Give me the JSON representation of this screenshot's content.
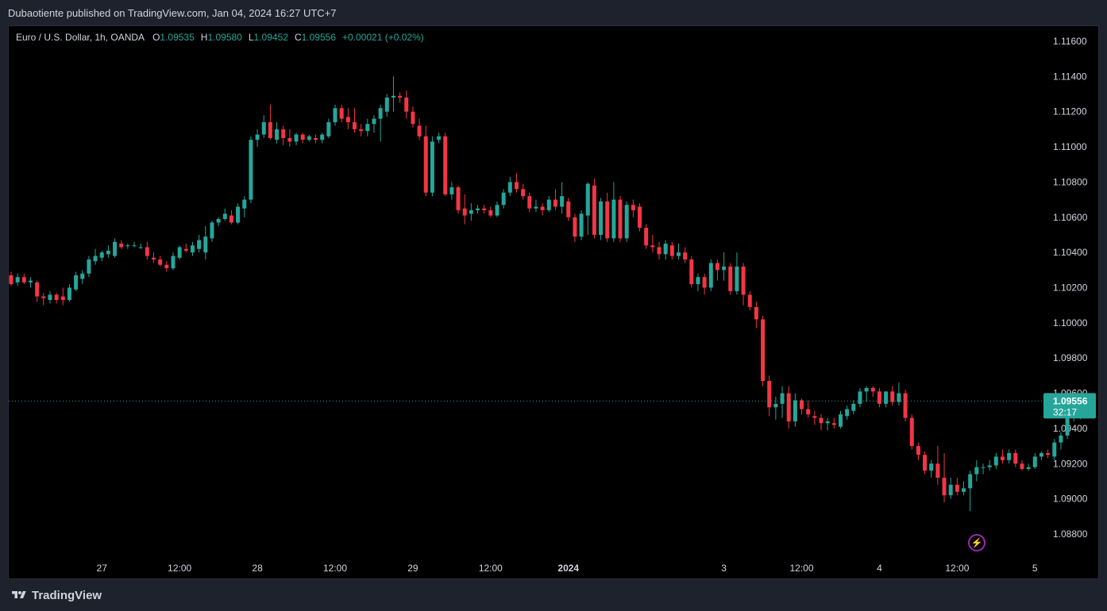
{
  "header": {
    "published": "Dubaotiente published on TradingView.com, Jan 04, 2024 16:27 UTC+7"
  },
  "legend": {
    "symbol": "Euro / U.S. Dollar, 1h, OANDA",
    "o_label": "O",
    "o_value": "1.09535",
    "h_label": "H",
    "h_value": "1.09580",
    "l_label": "L",
    "l_value": "1.09452",
    "c_label": "C",
    "c_value": "1.09556",
    "change": "+0.00021 (+0.02%)"
  },
  "price_label": {
    "price": "1.09556",
    "countdown": "32:17"
  },
  "footer": {
    "brand": "TradingView"
  },
  "icons": {
    "alert": "lightning-icon",
    "logo": "tradingview-logo-icon"
  },
  "colors": {
    "up": "#26a69a",
    "down": "#f23645",
    "background": "#000000",
    "axis_text": "#d1d4dc"
  },
  "chart_data": {
    "type": "candlestick",
    "title": "Euro / U.S. Dollar, 1h, OANDA",
    "y_ticks": [
      "1.11600",
      "1.11400",
      "1.11200",
      "1.11000",
      "1.10800",
      "1.10600",
      "1.10400",
      "1.10200",
      "1.10000",
      "1.09800",
      "1.09600",
      "1.09400",
      "1.09200",
      "1.09000",
      "1.08800"
    ],
    "ylim": [
      1.0875,
      1.1172
    ],
    "x_ticks": [
      {
        "label": "27",
        "bar": 14
      },
      {
        "label": "12:00",
        "bar": 26
      },
      {
        "label": "28",
        "bar": 38
      },
      {
        "label": "12:00",
        "bar": 50
      },
      {
        "label": "29",
        "bar": 62
      },
      {
        "label": "12:00",
        "bar": 74
      },
      {
        "label": "2024",
        "bar": 86,
        "bold": true
      },
      {
        "label": "3",
        "bar": 110
      },
      {
        "label": "12:00",
        "bar": 122
      },
      {
        "label": "4",
        "bar": 134
      },
      {
        "label": "12:00",
        "bar": 146
      },
      {
        "label": "5",
        "bar": 158
      }
    ],
    "last_close": 1.09556,
    "candles": [
      [
        1.1027,
        1.1029,
        1.1021,
        1.1022
      ],
      [
        1.1023,
        1.1028,
        1.1021,
        1.1026
      ],
      [
        1.1026,
        1.1028,
        1.1022,
        1.1023
      ],
      [
        1.1023,
        1.1026,
        1.102,
        1.1024
      ],
      [
        1.1023,
        1.1024,
        1.1012,
        1.1015
      ],
      [
        1.1015,
        1.1017,
        1.101,
        1.1014
      ],
      [
        1.1013,
        1.1018,
        1.1011,
        1.1016
      ],
      [
        1.1016,
        1.1017,
        1.1011,
        1.1013
      ],
      [
        1.1015,
        1.102,
        1.101,
        1.1013
      ],
      [
        1.1013,
        1.1022,
        1.1012,
        1.102
      ],
      [
        1.1019,
        1.1029,
        1.1018,
        1.1027
      ],
      [
        1.1025,
        1.103,
        1.1022,
        1.1028
      ],
      [
        1.1028,
        1.1038,
        1.1026,
        1.1036
      ],
      [
        1.1035,
        1.1042,
        1.1033,
        1.1038
      ],
      [
        1.1037,
        1.1041,
        1.1035,
        1.104
      ],
      [
        1.1039,
        1.1044,
        1.1037,
        1.1041
      ],
      [
        1.1038,
        1.1048,
        1.1037,
        1.1046
      ],
      [
        1.1045,
        1.1047,
        1.1042,
        1.1043
      ],
      [
        1.1044,
        1.1045,
        1.1042,
        1.1044
      ],
      [
        1.1044,
        1.1046,
        1.1043,
        1.1044
      ],
      [
        1.1043,
        1.1045,
        1.1042,
        1.1043
      ],
      [
        1.1043,
        1.1046,
        1.1036,
        1.1038
      ],
      [
        1.1037,
        1.104,
        1.1034,
        1.1036
      ],
      [
        1.1036,
        1.1038,
        1.1032,
        1.1033
      ],
      [
        1.1033,
        1.1035,
        1.1029,
        1.1031
      ],
      [
        1.1031,
        1.104,
        1.103,
        1.1038
      ],
      [
        1.1037,
        1.1044,
        1.1036,
        1.1043
      ],
      [
        1.1042,
        1.1045,
        1.104,
        1.1041
      ],
      [
        1.104,
        1.1046,
        1.1038,
        1.1044
      ],
      [
        1.1042,
        1.105,
        1.104,
        1.1047
      ],
      [
        1.104,
        1.1055,
        1.1036,
        1.1049
      ],
      [
        1.1048,
        1.1058,
        1.1046,
        1.1057
      ],
      [
        1.1057,
        1.106,
        1.1055,
        1.1059
      ],
      [
        1.1059,
        1.1065,
        1.1058,
        1.1062
      ],
      [
        1.1061,
        1.1064,
        1.1056,
        1.1057
      ],
      [
        1.1057,
        1.1068,
        1.1056,
        1.1066
      ],
      [
        1.1065,
        1.1072,
        1.106,
        1.107
      ],
      [
        1.107,
        1.1106,
        1.1068,
        1.1104
      ],
      [
        1.1104,
        1.111,
        1.11,
        1.1107
      ],
      [
        1.1107,
        1.1118,
        1.1105,
        1.1114
      ],
      [
        1.1114,
        1.1124,
        1.1104,
        1.1105
      ],
      [
        1.1104,
        1.1114,
        1.1102,
        1.111
      ],
      [
        1.111,
        1.1112,
        1.1101,
        1.1105
      ],
      [
        1.1105,
        1.111,
        1.11,
        1.1103
      ],
      [
        1.1103,
        1.1108,
        1.1101,
        1.1107
      ],
      [
        1.1107,
        1.1108,
        1.1102,
        1.1104
      ],
      [
        1.1104,
        1.1107,
        1.1103,
        1.1106
      ],
      [
        1.1105,
        1.1107,
        1.1102,
        1.1104
      ],
      [
        1.1104,
        1.1108,
        1.1102,
        1.1107
      ],
      [
        1.1106,
        1.1116,
        1.1105,
        1.1114
      ],
      [
        1.1114,
        1.1124,
        1.1112,
        1.1122
      ],
      [
        1.1122,
        1.1124,
        1.1114,
        1.1116
      ],
      [
        1.1117,
        1.1122,
        1.111,
        1.1114
      ],
      [
        1.1114,
        1.1122,
        1.1108,
        1.111
      ],
      [
        1.111,
        1.1113,
        1.1106,
        1.1109
      ],
      [
        1.1109,
        1.1116,
        1.1106,
        1.1113
      ],
      [
        1.1113,
        1.1118,
        1.1108,
        1.1116
      ],
      [
        1.1116,
        1.1124,
        1.1103,
        1.1122
      ],
      [
        1.112,
        1.113,
        1.1117,
        1.1128
      ],
      [
        1.1128,
        1.114,
        1.112,
        1.1129
      ],
      [
        1.1129,
        1.1131,
        1.1125,
        1.1128
      ],
      [
        1.1128,
        1.1132,
        1.1116,
        1.112
      ],
      [
        1.112,
        1.1123,
        1.1111,
        1.1113
      ],
      [
        1.1112,
        1.1116,
        1.1104,
        1.1106
      ],
      [
        1.1106,
        1.1112,
        1.1072,
        1.1074
      ],
      [
        1.1074,
        1.1106,
        1.1072,
        1.1103
      ],
      [
        1.1104,
        1.1108,
        1.1102,
        1.1106
      ],
      [
        1.1106,
        1.1108,
        1.1072,
        1.1073
      ],
      [
        1.1073,
        1.108,
        1.107,
        1.1077
      ],
      [
        1.1077,
        1.1078,
        1.1062,
        1.1064
      ],
      [
        1.1065,
        1.1073,
        1.1056,
        1.1061
      ],
      [
        1.1062,
        1.1068,
        1.1058,
        1.1064
      ],
      [
        1.1064,
        1.1067,
        1.1062,
        1.1065
      ],
      [
        1.1065,
        1.1067,
        1.1062,
        1.1064
      ],
      [
        1.1064,
        1.1066,
        1.106,
        1.1061
      ],
      [
        1.1061,
        1.1069,
        1.106,
        1.1067
      ],
      [
        1.1067,
        1.1076,
        1.1065,
        1.1074
      ],
      [
        1.1074,
        1.1083,
        1.1072,
        1.108
      ],
      [
        1.108,
        1.1085,
        1.1074,
        1.1076
      ],
      [
        1.1076,
        1.1079,
        1.107,
        1.1072
      ],
      [
        1.1072,
        1.1074,
        1.1063,
        1.1065
      ],
      [
        1.1065,
        1.107,
        1.1063,
        1.1066
      ],
      [
        1.1066,
        1.1068,
        1.1061,
        1.1064
      ],
      [
        1.1064,
        1.1072,
        1.1063,
        1.107
      ],
      [
        1.107,
        1.1076,
        1.1064,
        1.1066
      ],
      [
        1.1066,
        1.108,
        1.1062,
        1.1072
      ],
      [
        1.1069,
        1.1071,
        1.1058,
        1.106
      ],
      [
        1.106,
        1.1062,
        1.1046,
        1.1049
      ],
      [
        1.1049,
        1.1064,
        1.1047,
        1.1062
      ],
      [
        1.1061,
        1.108,
        1.105,
        1.1079
      ],
      [
        1.1078,
        1.1082,
        1.1048,
        1.105
      ],
      [
        1.105,
        1.1071,
        1.1047,
        1.1069
      ],
      [
        1.1069,
        1.1074,
        1.1046,
        1.1048
      ],
      [
        1.1048,
        1.108,
        1.1046,
        1.107
      ],
      [
        1.107,
        1.1072,
        1.1046,
        1.1048
      ],
      [
        1.1048,
        1.1069,
        1.1046,
        1.1067
      ],
      [
        1.1067,
        1.107,
        1.106,
        1.1064
      ],
      [
        1.1066,
        1.1068,
        1.1052,
        1.1054
      ],
      [
        1.1054,
        1.1056,
        1.1042,
        1.1044
      ],
      [
        1.1044,
        1.105,
        1.104,
        1.1043
      ],
      [
        1.1043,
        1.1046,
        1.1036,
        1.1039
      ],
      [
        1.1039,
        1.1047,
        1.1036,
        1.1045
      ],
      [
        1.1044,
        1.1046,
        1.1036,
        1.1038
      ],
      [
        1.1038,
        1.1045,
        1.1036,
        1.104
      ],
      [
        1.104,
        1.1043,
        1.1034,
        1.1036
      ],
      [
        1.1036,
        1.1038,
        1.102,
        1.1022
      ],
      [
        1.1022,
        1.1028,
        1.1018,
        1.1026
      ],
      [
        1.1026,
        1.1028,
        1.1016,
        1.102
      ],
      [
        1.102,
        1.1036,
        1.1018,
        1.1034
      ],
      [
        1.1034,
        1.1036,
        1.1024,
        1.103
      ],
      [
        1.103,
        1.104,
        1.1024,
        1.1032
      ],
      [
        1.1032,
        1.1034,
        1.1016,
        1.1018
      ],
      [
        1.1018,
        1.104,
        1.1016,
        1.1032
      ],
      [
        1.1032,
        1.1034,
        1.101,
        1.1016
      ],
      [
        1.1016,
        1.1018,
        1.1007,
        1.1009
      ],
      [
        1.1009,
        1.1012,
        1.0997,
        1.1002
      ],
      [
        1.1002,
        1.1004,
        1.0964,
        1.0967
      ],
      [
        1.0967,
        1.097,
        1.0947,
        1.0952
      ],
      [
        1.0952,
        1.0958,
        1.0945,
        1.0954
      ],
      [
        1.0954,
        1.0964,
        1.0946,
        1.096
      ],
      [
        1.096,
        1.0964,
        1.094,
        1.0944
      ],
      [
        1.0944,
        1.096,
        1.0941,
        1.0956
      ],
      [
        1.0956,
        1.0957,
        1.0948,
        1.0951
      ],
      [
        1.0951,
        1.0956,
        1.0946,
        1.0948
      ],
      [
        1.0947,
        1.095,
        1.0942,
        1.0946
      ],
      [
        1.0946,
        1.0948,
        1.0939,
        1.0943
      ],
      [
        1.0943,
        1.0946,
        1.0939,
        1.0944
      ],
      [
        1.0943,
        1.0946,
        1.094,
        1.0942
      ],
      [
        1.0941,
        1.095,
        1.094,
        1.0948
      ],
      [
        1.0947,
        1.0953,
        1.0945,
        1.0951
      ],
      [
        1.095,
        1.0956,
        1.0948,
        1.0954
      ],
      [
        1.0954,
        1.0963,
        1.0952,
        1.0961
      ],
      [
        1.0961,
        1.0964,
        1.0955,
        1.0963
      ],
      [
        1.0963,
        1.0964,
        1.0958,
        1.0961
      ],
      [
        1.0961,
        1.0963,
        1.0952,
        1.0954
      ],
      [
        1.0954,
        1.0961,
        1.0952,
        1.0961
      ],
      [
        1.0961,
        1.0964,
        1.0953,
        1.0955
      ],
      [
        1.0955,
        1.0966,
        1.0953,
        1.096
      ],
      [
        1.096,
        1.0962,
        1.0944,
        1.0946
      ],
      [
        1.0946,
        1.0948,
        1.0928,
        1.093
      ],
      [
        1.093,
        1.0932,
        1.0922,
        1.0925
      ],
      [
        1.0925,
        1.0927,
        1.0914,
        1.0916
      ],
      [
        1.0916,
        1.0922,
        1.0912,
        1.092
      ],
      [
        1.092,
        1.093,
        1.0908,
        1.0912
      ],
      [
        1.0912,
        1.0926,
        1.0898,
        1.0902
      ],
      [
        1.0902,
        1.0912,
        1.09,
        1.0908
      ],
      [
        1.0908,
        1.0912,
        1.0902,
        1.0904
      ],
      [
        1.0904,
        1.091,
        1.0902,
        1.0906
      ],
      [
        1.0906,
        1.0916,
        1.0893,
        1.0914
      ],
      [
        1.0914,
        1.0922,
        1.091,
        1.0918
      ],
      [
        1.0918,
        1.092,
        1.0914,
        1.0918
      ],
      [
        1.0918,
        1.0922,
        1.0916,
        1.0919
      ],
      [
        1.0919,
        1.0926,
        1.0917,
        1.0924
      ],
      [
        1.0924,
        1.0928,
        1.092,
        1.0922
      ],
      [
        1.0922,
        1.0928,
        1.092,
        1.0926
      ],
      [
        1.0926,
        1.0928,
        1.0918,
        1.092
      ],
      [
        1.092,
        1.0922,
        1.0916,
        1.0917
      ],
      [
        1.0917,
        1.092,
        1.0916,
        1.0918
      ],
      [
        1.0918,
        1.0926,
        1.0917,
        1.0924
      ],
      [
        1.0924,
        1.0927,
        1.0922,
        1.0926
      ],
      [
        1.0926,
        1.0928,
        1.0923,
        1.0925
      ],
      [
        1.0924,
        1.0934,
        1.0922,
        1.0932
      ],
      [
        1.0932,
        1.0938,
        1.0928,
        1.0936
      ],
      [
        1.0936,
        1.0948,
        1.0934,
        1.0946
      ],
      [
        1.0946,
        1.096,
        1.0944,
        1.09535
      ],
      [
        1.09535,
        1.0958,
        1.09452,
        1.09556
      ]
    ]
  }
}
